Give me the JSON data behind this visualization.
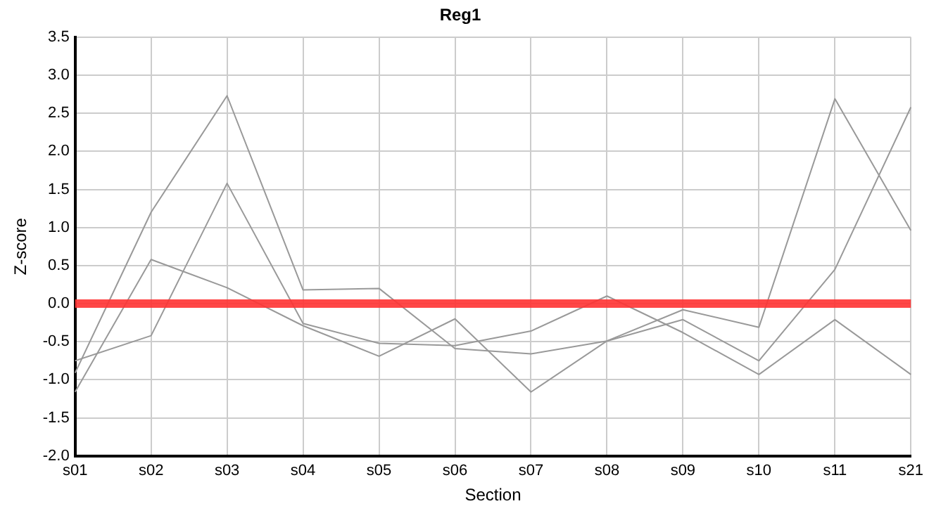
{
  "chart_data": {
    "type": "line",
    "title": "Reg1",
    "xlabel": "Section",
    "ylabel": "Z-score",
    "categories": [
      "s01",
      "s02",
      "s03",
      "s04",
      "s05",
      "s06",
      "s07",
      "s08",
      "s09",
      "s10",
      "s11",
      "s21"
    ],
    "series": [
      {
        "color": "#999999",
        "values": [
          -0.91,
          1.2,
          2.73,
          0.18,
          0.2,
          -0.59,
          -0.66,
          -0.49,
          -0.08,
          -0.31,
          2.69,
          0.96
        ]
      },
      {
        "color": "#999999",
        "values": [
          -1.16,
          0.58,
          0.21,
          -0.29,
          -0.69,
          -0.2,
          -1.16,
          -0.49,
          -0.21,
          -0.75,
          0.45,
          2.58
        ]
      },
      {
        "color": "#999999",
        "values": [
          -0.75,
          -0.42,
          1.58,
          -0.26,
          -0.52,
          -0.55,
          -0.36,
          0.1,
          -0.38,
          -0.93,
          -0.21,
          -0.93
        ]
      }
    ],
    "ylim": [
      -2,
      3.5
    ],
    "yticks": [
      {
        "value": -2,
        "label": "-2.0"
      },
      {
        "value": -1.5,
        "label": "-1.5"
      },
      {
        "value": -1,
        "label": "-1.0"
      },
      {
        "value": -0.5,
        "label": "-0.5"
      },
      {
        "value": 0,
        "label": "0.0"
      },
      {
        "value": 0.5,
        "label": "0.5"
      },
      {
        "value": 1,
        "label": "1.0"
      },
      {
        "value": 1.5,
        "label": "1.5"
      },
      {
        "value": 2,
        "label": "2.0"
      },
      {
        "value": 2.5,
        "label": "2.5"
      },
      {
        "value": 3,
        "label": "3.0"
      },
      {
        "value": 3.5,
        "label": "3.5"
      }
    ],
    "ref_lines": [
      {
        "axis": "y",
        "value": 0,
        "color": "#ff3333"
      }
    ],
    "grid": true,
    "legend": false,
    "marker": "none",
    "line_style": "solid"
  }
}
